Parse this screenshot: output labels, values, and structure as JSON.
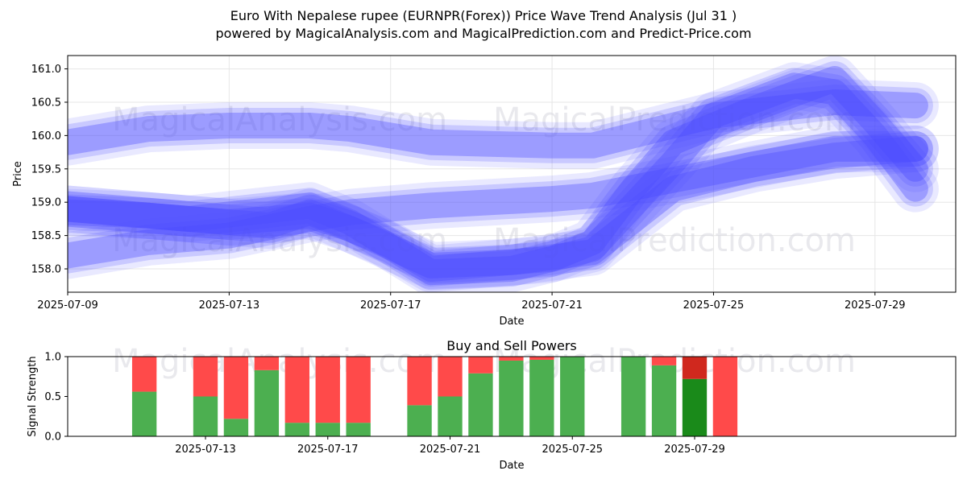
{
  "title_line1": "Euro With Nepalese rupee (EURNPR(Forex)) Price Wave Trend Analysis (Jul 31 )",
  "title_line2": "powered by MagicalAnalysis.com and MagicalPrediction.com and Predict-Price.com",
  "watermarks": [
    "MagicalAnalysis.com",
    "MagicalPrediction.com"
  ],
  "chart_data": [
    {
      "type": "line",
      "title": "",
      "xlabel": "Date",
      "ylabel": "Price",
      "ylim": [
        157.65,
        161.2
      ],
      "xlim": [
        "2025-07-09",
        "2025-07-31"
      ],
      "grid": true,
      "x_ticks": [
        "2025-07-09",
        "2025-07-13",
        "2025-07-17",
        "2025-07-21",
        "2025-07-25",
        "2025-07-29"
      ],
      "y_ticks": [
        158.0,
        158.5,
        159.0,
        159.5,
        160.0,
        160.5,
        161.0
      ],
      "series": [
        {
          "x": [
            "2025-07-09",
            "2025-07-11",
            "2025-07-13",
            "2025-07-15",
            "2025-07-16",
            "2025-07-18",
            "2025-07-21",
            "2025-07-22",
            "2025-07-25",
            "2025-07-28",
            "2025-07-30"
          ],
          "values": [
            159.9,
            160.1,
            160.15,
            160.15,
            160.1,
            159.9,
            159.85,
            159.85,
            160.3,
            160.5,
            160.45
          ]
        },
        {
          "x": [
            "2025-07-09",
            "2025-07-11",
            "2025-07-13",
            "2025-07-15",
            "2025-07-16",
            "2025-07-18",
            "2025-07-21",
            "2025-07-22",
            "2025-07-25",
            "2025-07-28",
            "2025-07-30"
          ],
          "values": [
            158.2,
            158.4,
            158.5,
            158.75,
            158.85,
            158.95,
            159.05,
            159.1,
            159.45,
            159.8,
            159.8
          ]
        },
        {
          "x": [
            "2025-07-09",
            "2025-07-10",
            "2025-07-12",
            "2025-07-14",
            "2025-07-15",
            "2025-07-16",
            "2025-07-18",
            "2025-07-20",
            "2025-07-22",
            "2025-07-24",
            "2025-07-26",
            "2025-07-28",
            "2025-07-30"
          ],
          "values": [
            158.9,
            158.85,
            158.75,
            158.65,
            158.85,
            158.6,
            158.05,
            158.1,
            158.25,
            159.2,
            159.5,
            159.7,
            159.8
          ]
        },
        {
          "x": [
            "2025-07-09",
            "2025-07-11",
            "2025-07-13",
            "2025-07-15",
            "2025-07-16",
            "2025-07-17",
            "2025-07-18",
            "2025-07-20",
            "2025-07-21",
            "2025-07-22",
            "2025-07-23",
            "2025-07-24",
            "2025-07-26",
            "2025-07-28",
            "2025-07-29",
            "2025-07-30"
          ],
          "values": [
            158.85,
            158.8,
            158.7,
            158.8,
            158.6,
            158.35,
            158.0,
            158.1,
            158.15,
            158.4,
            159.2,
            159.9,
            160.4,
            160.85,
            160.2,
            159.5
          ]
        },
        {
          "x": [
            "2025-07-09",
            "2025-07-12",
            "2025-07-15",
            "2025-07-16",
            "2025-07-18",
            "2025-07-20",
            "2025-07-22",
            "2025-07-24",
            "2025-07-25",
            "2025-07-27",
            "2025-07-28",
            "2025-07-29",
            "2025-07-30"
          ],
          "values": [
            158.9,
            158.75,
            158.95,
            158.7,
            157.95,
            158.0,
            158.3,
            159.6,
            160.3,
            160.75,
            160.65,
            160.0,
            159.2
          ]
        }
      ]
    },
    {
      "type": "bar",
      "title": "Buy and Sell Powers",
      "xlabel": "Date",
      "ylabel": "Signal Strength",
      "ylim": [
        0.0,
        1.0
      ],
      "x_ticks": [
        "2025-07-13",
        "2025-07-17",
        "2025-07-21",
        "2025-07-25",
        "2025-07-29"
      ],
      "y_ticks": [
        0.0,
        0.5,
        1.0
      ],
      "colors": {
        "buy": "#4caf50",
        "sell": "#ff4a4a",
        "buy_last": "#1a8a1a",
        "sell_last": "#d0281e"
      },
      "series": [
        {
          "name": "Buy",
          "x": [
            "2025-07-11",
            "2025-07-13",
            "2025-07-14",
            "2025-07-15",
            "2025-07-16",
            "2025-07-17",
            "2025-07-18",
            "2025-07-20",
            "2025-07-21",
            "2025-07-22",
            "2025-07-23",
            "2025-07-24",
            "2025-07-25",
            "2025-07-27",
            "2025-07-28",
            "2025-07-29",
            "2025-07-30"
          ],
          "values": [
            0.56,
            0.5,
            0.22,
            0.83,
            0.17,
            0.17,
            0.17,
            0.39,
            0.5,
            0.79,
            0.95,
            0.96,
            1.0,
            1.0,
            0.89,
            0.72,
            0.0
          ]
        },
        {
          "name": "Sell",
          "x": [
            "2025-07-11",
            "2025-07-13",
            "2025-07-14",
            "2025-07-15",
            "2025-07-16",
            "2025-07-17",
            "2025-07-18",
            "2025-07-20",
            "2025-07-21",
            "2025-07-22",
            "2025-07-23",
            "2025-07-24",
            "2025-07-25",
            "2025-07-27",
            "2025-07-28",
            "2025-07-29",
            "2025-07-30"
          ],
          "values": [
            0.44,
            0.5,
            0.78,
            0.17,
            0.83,
            0.83,
            0.83,
            0.61,
            0.5,
            0.21,
            0.05,
            0.04,
            0.0,
            0.0,
            0.11,
            0.28,
            1.0
          ]
        }
      ]
    }
  ]
}
